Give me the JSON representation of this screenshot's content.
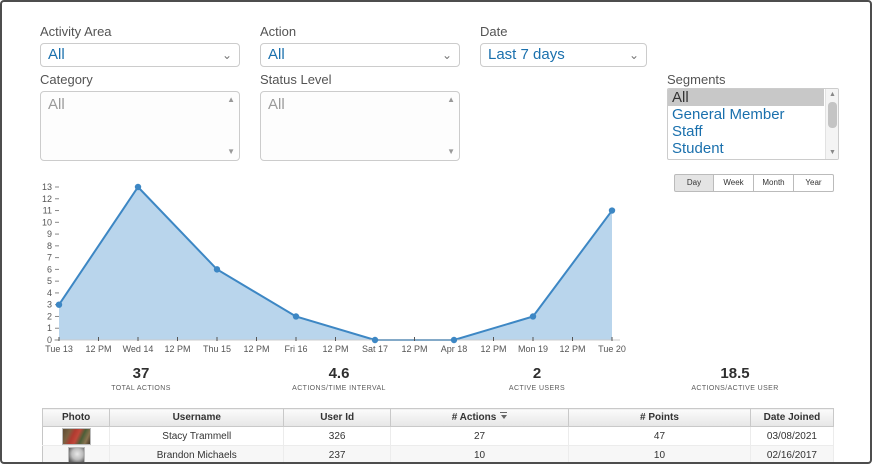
{
  "filters": {
    "activity_area": {
      "label": "Activity Area",
      "value": "All"
    },
    "action": {
      "label": "Action",
      "value": "All"
    },
    "date": {
      "label": "Date",
      "value": "Last 7 days"
    },
    "category": {
      "label": "Category",
      "value": "All"
    },
    "status_level": {
      "label": "Status Level",
      "value": "All"
    },
    "segments": {
      "label": "Segments",
      "options": [
        "All",
        "General Member",
        "Staff",
        "Student"
      ],
      "selected": "All"
    }
  },
  "chart_controls": {
    "buttons": [
      "Day",
      "Week",
      "Month",
      "Year"
    ],
    "active": "Day"
  },
  "chart_data": {
    "type": "area",
    "x": [
      "Tue 13",
      "Wed 14",
      "Thu 15",
      "Fri 16",
      "Sat 17",
      "Apr 18",
      "Mon 19",
      "Tue 20"
    ],
    "values": [
      3,
      13,
      6,
      2,
      0,
      0,
      2,
      11
    ],
    "x_minor_label": "12 PM",
    "ylim": [
      0,
      13
    ],
    "y_ticks": [
      0,
      1,
      2,
      3,
      4,
      5,
      6,
      7,
      8,
      9,
      10,
      11,
      12,
      13
    ],
    "line_color": "#3d87c4",
    "fill_color": "#b9d5ec",
    "marker_color": "#3d87c4",
    "axis_color": "#cccccc",
    "tick_color": "#555555",
    "grid": false,
    "legend": "none"
  },
  "stats": [
    {
      "value": "37",
      "label": "TOTAL ACTIONS"
    },
    {
      "value": "4.6",
      "label": "ACTIONS/TIME INTERVAL"
    },
    {
      "value": "2",
      "label": "ACTIVE USERS"
    },
    {
      "value": "18.5",
      "label": "ACTIONS/ACTIVE USER"
    }
  ],
  "table": {
    "columns": [
      "Photo",
      "Username",
      "User Id",
      "# Actions",
      "# Points",
      "Date Joined"
    ],
    "sorted_column": "# Actions",
    "rows": [
      {
        "username": "Stacy Trammell",
        "user_id": "326",
        "actions": "27",
        "points": "47",
        "date_joined": "03/08/2021"
      },
      {
        "username": "Brandon Michaels",
        "user_id": "237",
        "actions": "10",
        "points": "10",
        "date_joined": "02/16/2017"
      }
    ]
  }
}
